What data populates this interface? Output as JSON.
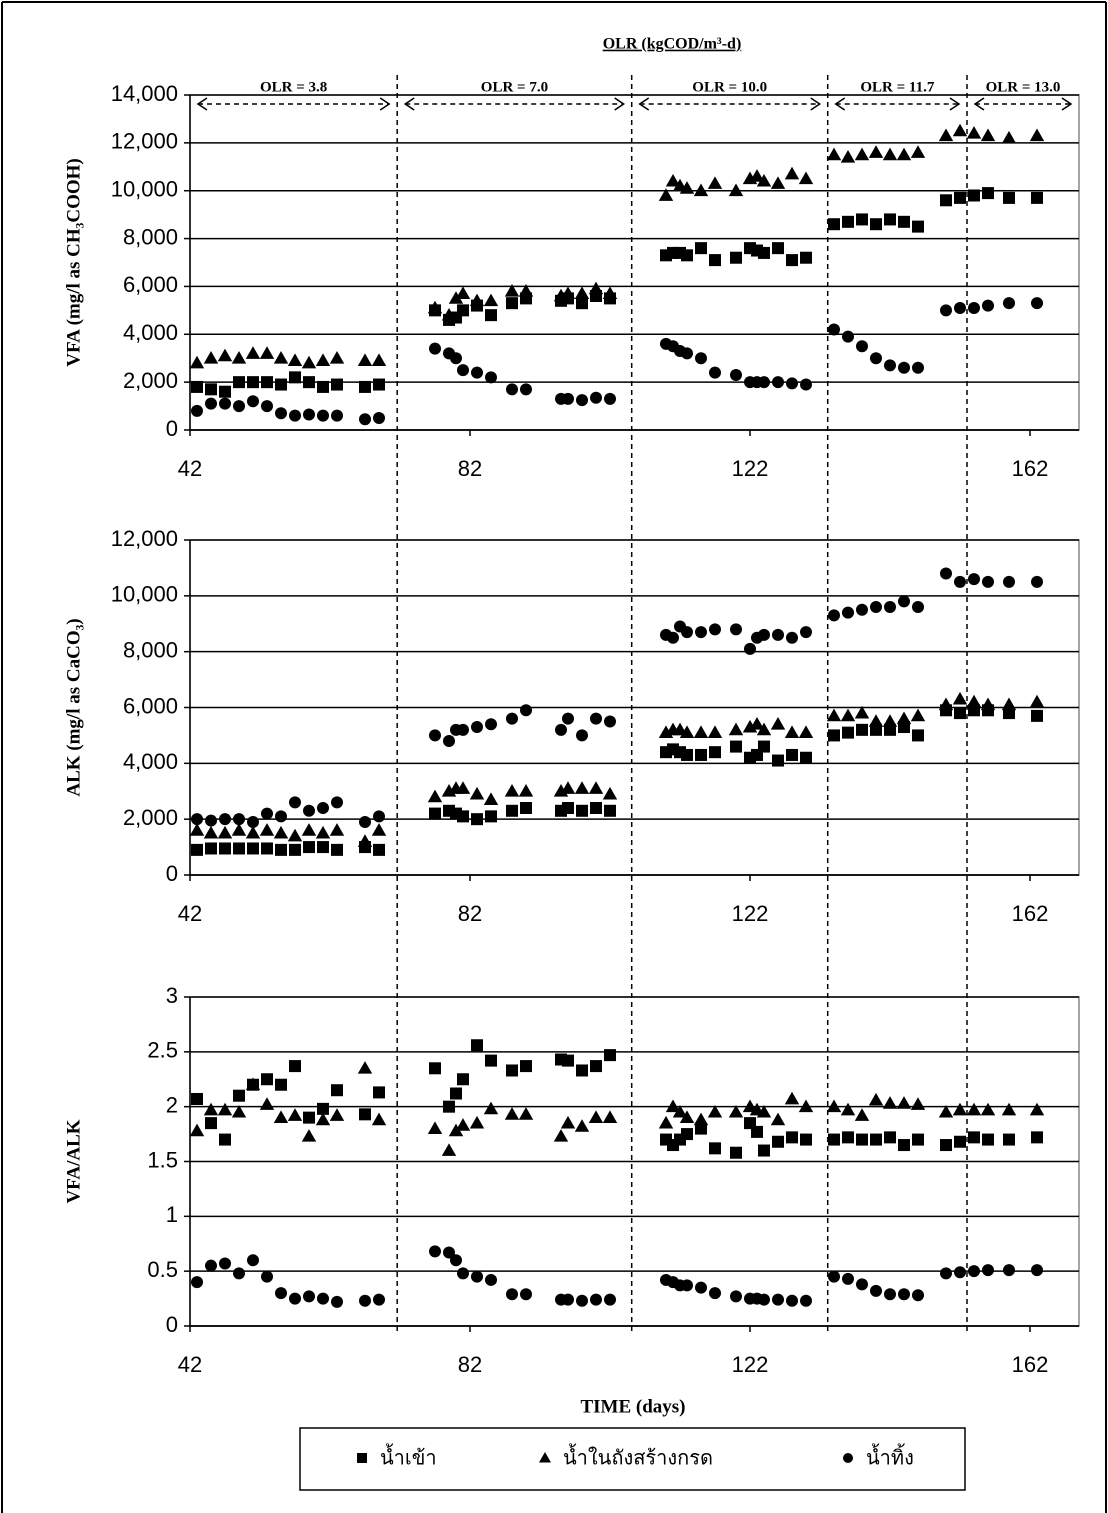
{
  "chart_data": [
    {
      "type": "scatter",
      "olr_title": "OLR (kgCOD/m³-d)",
      "olr_labels": [
        "OLR = 3.8",
        "OLR = 7.0",
        "OLR = 10.0",
        "OLR = 11.7",
        "OLR = 13.0"
      ],
      "olr_boundaries": [
        71.6,
        105.1,
        133.1,
        153
      ],
      "ylabel": "VFA  (mg/l as CH₃COOH)",
      "xlim": [
        42,
        169
      ],
      "xticks": [
        42,
        82,
        122,
        162
      ],
      "ylim": [
        0,
        14000
      ],
      "yticks": [
        0,
        {
          "value": 2000,
          "label": "2,000"
        },
        {
          "value": 4000,
          "label": "4,000"
        },
        {
          "value": 6000,
          "label": "6,000"
        },
        {
          "value": 8000,
          "label": "8,000"
        },
        {
          "value": 10000,
          "label": "10,000"
        },
        {
          "value": 12000,
          "label": "12,000"
        },
        {
          "value": 14000,
          "label": "14,000"
        }
      ],
      "grid": true,
      "x": [
        43,
        45,
        47,
        49,
        51,
        53,
        55,
        57,
        59,
        61,
        63,
        67,
        69,
        77,
        79,
        80,
        81,
        83,
        85,
        88,
        90,
        95,
        96,
        98,
        100,
        102,
        110,
        111,
        112,
        113,
        115,
        117,
        120,
        122,
        123,
        124,
        126,
        128,
        130,
        134,
        136,
        138,
        140,
        142,
        144,
        146,
        150,
        152,
        154,
        156,
        159,
        163
      ],
      "series": [
        {
          "marker": "square",
          "color": "#000000",
          "values": [
            1800,
            1700,
            1600,
            2000,
            2000,
            2000,
            1900,
            2200,
            2000,
            1800,
            1900,
            1800,
            1900,
            5000,
            4600,
            4700,
            5000,
            5200,
            4800,
            5300,
            5500,
            5400,
            5500,
            5300,
            5600,
            5500,
            7300,
            7400,
            7400,
            7300,
            7600,
            7100,
            7200,
            7600,
            7500,
            7400,
            7600,
            7100,
            7200,
            8600,
            8700,
            8800,
            8600,
            8800,
            8700,
            8500,
            9600,
            9700,
            9800,
            9900,
            9700,
            9700
          ]
        },
        {
          "marker": "triangle",
          "color": "#000000",
          "values": [
            2800,
            3000,
            3100,
            3000,
            3200,
            3200,
            3000,
            2900,
            2800,
            2900,
            3000,
            2900,
            2900,
            5100,
            4800,
            5500,
            5700,
            5400,
            5400,
            5800,
            5800,
            5600,
            5700,
            5700,
            5900,
            5700,
            9800,
            10400,
            10200,
            10100,
            10000,
            10300,
            10000,
            10500,
            10600,
            10400,
            10300,
            10700,
            10500,
            11500,
            11400,
            11500,
            11600,
            11500,
            11500,
            11600,
            12300,
            12500,
            12400,
            12300,
            12200,
            12300
          ]
        },
        {
          "marker": "circle",
          "color": "#000000",
          "values": [
            800,
            1100,
            1100,
            1000,
            1200,
            1000,
            700,
            600,
            650,
            600,
            600,
            450,
            500,
            3400,
            3200,
            3000,
            2500,
            2400,
            2200,
            1700,
            1700,
            1300,
            1300,
            1250,
            1350,
            1300,
            3600,
            3500,
            3300,
            3200,
            3000,
            2400,
            2300,
            2000,
            2000,
            2000,
            2000,
            1950,
            1900,
            4200,
            3900,
            3500,
            3000,
            2700,
            2600,
            2600,
            5000,
            5100,
            5100,
            5200,
            5300,
            5300
          ]
        }
      ]
    },
    {
      "type": "scatter",
      "ylabel": "ALK (mg/l as CaCO₃)",
      "xlim": [
        42,
        169
      ],
      "xticks": [
        42,
        82,
        122,
        162
      ],
      "ylim": [
        0,
        12000
      ],
      "yticks": [
        0,
        {
          "value": 2000,
          "label": "2,000"
        },
        {
          "value": 4000,
          "label": "4,000"
        },
        {
          "value": 6000,
          "label": "6,000"
        },
        {
          "value": 8000,
          "label": "8,000"
        },
        {
          "value": 10000,
          "label": "10,000"
        },
        {
          "value": 12000,
          "label": "12,000"
        }
      ],
      "grid": true,
      "x": [
        43,
        45,
        47,
        49,
        51,
        53,
        55,
        57,
        59,
        61,
        63,
        67,
        69,
        77,
        79,
        80,
        81,
        83,
        85,
        88,
        90,
        95,
        96,
        98,
        100,
        102,
        110,
        111,
        112,
        113,
        115,
        117,
        120,
        122,
        123,
        124,
        126,
        128,
        130,
        134,
        136,
        138,
        140,
        142,
        144,
        146,
        150,
        152,
        154,
        156,
        159,
        163
      ],
      "series": [
        {
          "marker": "square",
          "color": "#000000",
          "values": [
            900,
            950,
            950,
            950,
            950,
            950,
            900,
            900,
            1000,
            1000,
            900,
            1000,
            900,
            2200,
            2300,
            2200,
            2100,
            2000,
            2100,
            2300,
            2400,
            2300,
            2400,
            2300,
            2400,
            2300,
            4400,
            4500,
            4400,
            4300,
            4300,
            4400,
            4600,
            4200,
            4300,
            4600,
            4100,
            4300,
            4200,
            5000,
            5100,
            5200,
            5200,
            5200,
            5300,
            5000,
            5900,
            5800,
            5900,
            5900,
            5800,
            5700
          ]
        },
        {
          "marker": "triangle",
          "color": "#000000",
          "values": [
            1600,
            1500,
            1500,
            1600,
            1500,
            1600,
            1500,
            1400,
            1600,
            1500,
            1600,
            1200,
            1600,
            2800,
            3000,
            3100,
            3100,
            2900,
            2700,
            3000,
            3000,
            3000,
            3100,
            3100,
            3100,
            2900,
            5100,
            5200,
            5200,
            5100,
            5100,
            5100,
            5200,
            5300,
            5400,
            5200,
            5400,
            5100,
            5100,
            5700,
            5700,
            5800,
            5500,
            5500,
            5600,
            5700,
            6100,
            6300,
            6200,
            6100,
            6100,
            6200
          ]
        },
        {
          "marker": "circle",
          "color": "#000000",
          "values": [
            2000,
            1950,
            2000,
            2000,
            1900,
            2200,
            2100,
            2600,
            2300,
            2400,
            2600,
            1900,
            2100,
            5000,
            4800,
            5200,
            5200,
            5300,
            5400,
            5600,
            5900,
            5200,
            5600,
            5000,
            5600,
            5500,
            8600,
            8500,
            8900,
            8700,
            8700,
            8800,
            8800,
            8100,
            8500,
            8600,
            8600,
            8500,
            8700,
            9300,
            9400,
            9500,
            9600,
            9600,
            9800,
            9600,
            10800,
            10500,
            10600,
            10500,
            10500,
            10500
          ]
        }
      ]
    },
    {
      "type": "scatter",
      "ylabel": "VFA/ALK",
      "xlabel": "TIME (days)",
      "xlim": [
        42,
        169
      ],
      "xticks": [
        42,
        82,
        122,
        162
      ],
      "ylim": [
        0,
        3
      ],
      "yticks": [
        0,
        0.5,
        1,
        1.5,
        2,
        2.5,
        3
      ],
      "grid": true,
      "x": [
        43,
        45,
        47,
        49,
        51,
        53,
        55,
        57,
        59,
        61,
        63,
        67,
        69,
        77,
        79,
        80,
        81,
        83,
        85,
        88,
        90,
        95,
        96,
        98,
        100,
        102,
        110,
        111,
        112,
        113,
        115,
        117,
        120,
        122,
        123,
        124,
        126,
        128,
        130,
        134,
        136,
        138,
        140,
        142,
        144,
        146,
        150,
        152,
        154,
        156,
        159,
        163
      ],
      "series": [
        {
          "name": "น้ำเข้า",
          "marker": "square",
          "color": "#000000",
          "values": [
            2.07,
            1.85,
            1.7,
            2.1,
            2.2,
            2.25,
            2.2,
            2.37,
            1.9,
            1.98,
            2.15,
            1.93,
            2.13,
            2.35,
            2.0,
            2.12,
            2.25,
            2.56,
            2.42,
            2.33,
            2.37,
            2.43,
            2.42,
            2.33,
            2.37,
            2.47,
            1.7,
            1.65,
            1.7,
            1.75,
            1.8,
            1.62,
            1.58,
            1.85,
            1.77,
            1.6,
            1.68,
            1.72,
            1.7,
            1.7,
            1.72,
            1.7,
            1.7,
            1.72,
            1.65,
            1.7,
            1.65,
            1.68,
            1.72,
            1.7,
            1.7,
            1.72
          ]
        },
        {
          "name": "น้ำในถังสร้างกรด",
          "marker": "triangle",
          "color": "#000000",
          "values": [
            1.78,
            1.97,
            1.97,
            1.95,
            2.2,
            2.02,
            1.9,
            1.92,
            1.73,
            1.88,
            1.92,
            2.35,
            1.88,
            1.8,
            1.6,
            1.78,
            1.83,
            1.85,
            1.98,
            1.93,
            1.93,
            1.73,
            1.85,
            1.82,
            1.9,
            1.9,
            1.85,
            2.0,
            1.95,
            1.9,
            1.88,
            1.95,
            1.95,
            2.0,
            1.97,
            1.95,
            1.88,
            2.07,
            2.0,
            2.0,
            1.97,
            1.92,
            2.06,
            2.03,
            2.03,
            2.02,
            1.95,
            1.97,
            1.97,
            1.97,
            1.97,
            1.97
          ]
        },
        {
          "name": "น้ำทิ้ง",
          "marker": "circle",
          "color": "#000000",
          "values": [
            0.4,
            0.55,
            0.57,
            0.48,
            0.6,
            0.45,
            0.3,
            0.25,
            0.27,
            0.25,
            0.22,
            0.23,
            0.24,
            0.68,
            0.67,
            0.6,
            0.48,
            0.45,
            0.42,
            0.29,
            0.29,
            0.24,
            0.24,
            0.23,
            0.24,
            0.24,
            0.42,
            0.4,
            0.37,
            0.37,
            0.35,
            0.3,
            0.27,
            0.25,
            0.25,
            0.24,
            0.24,
            0.23,
            0.23,
            0.45,
            0.43,
            0.38,
            0.32,
            0.29,
            0.29,
            0.28,
            0.48,
            0.49,
            0.5,
            0.51,
            0.51,
            0.51
          ]
        }
      ]
    }
  ]
}
